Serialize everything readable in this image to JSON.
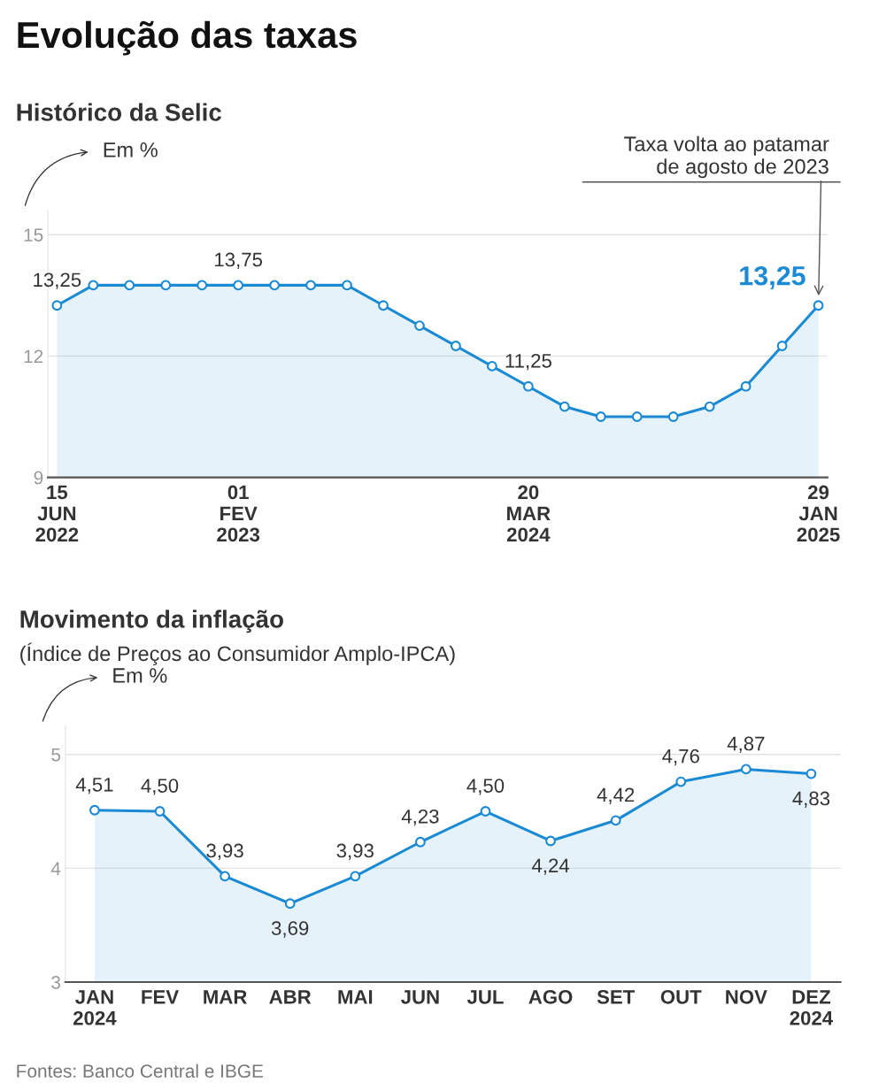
{
  "chart_data": [
    {
      "type": "area",
      "title": "Evolução das taxas",
      "subtitle": "Histórico da Selic",
      "ylabel": "Em %",
      "categories": [
        "15\nJUN\n2022",
        null,
        null,
        null,
        null,
        "01\nFEV\n2023",
        null,
        null,
        null,
        null,
        null,
        null,
        null,
        "20\nMAR\n2024",
        null,
        null,
        null,
        null,
        null,
        null,
        null,
        "29\nJAN\n2025"
      ],
      "series": [
        {
          "color": "#1a8ad4",
          "values": [
            13.25,
            13.75,
            13.75,
            13.75,
            13.75,
            13.75,
            13.75,
            13.75,
            13.75,
            13.25,
            12.75,
            12.25,
            11.75,
            11.25,
            10.75,
            10.5,
            10.5,
            10.5,
            10.75,
            11.25,
            12.25,
            13.25
          ],
          "value_labels": [
            "13,25",
            null,
            null,
            null,
            null,
            "13,75",
            null,
            null,
            null,
            null,
            null,
            null,
            null,
            "11,25",
            null,
            null,
            null,
            null,
            null,
            null,
            null,
            "13,25"
          ]
        }
      ],
      "annotations": [
        "Taxa volta ao patamar\nde agosto de 2023"
      ],
      "ylim": [
        9,
        15.6
      ],
      "yticks": [
        9,
        12,
        15
      ],
      "grid": "y",
      "marker": "circle",
      "line_style": "solid"
    },
    {
      "type": "area",
      "title": "Movimento da inflação",
      "subtitle": "(Índice de Preços ao Consumidor Amplo-IPCA)",
      "ylabel": "Em %",
      "categories": [
        "JAN\n2024",
        "FEV",
        "MAR",
        "ABR",
        "MAI",
        "JUN",
        "JUL",
        "AGO",
        "SET",
        "OUT",
        "NOV",
        "DEZ\n2024"
      ],
      "series": [
        {
          "color": "#1a8ad4",
          "values": [
            4.51,
            4.5,
            3.93,
            3.69,
            3.93,
            4.23,
            4.5,
            4.24,
            4.42,
            4.76,
            4.87,
            4.83
          ],
          "value_labels": [
            "4,51",
            "4,50",
            "3,93",
            "3,69",
            "3,93",
            "4,23",
            "4,50",
            "4,24",
            "4,42",
            "4,76",
            "4,87",
            "4,83"
          ]
        }
      ],
      "annotations": [
        "Fontes: Banco Central e IBGE"
      ],
      "ylim": [
        3,
        5.25
      ],
      "yticks": [
        3,
        4,
        5
      ],
      "grid": "y",
      "marker": "circle",
      "line_style": "solid"
    }
  ]
}
